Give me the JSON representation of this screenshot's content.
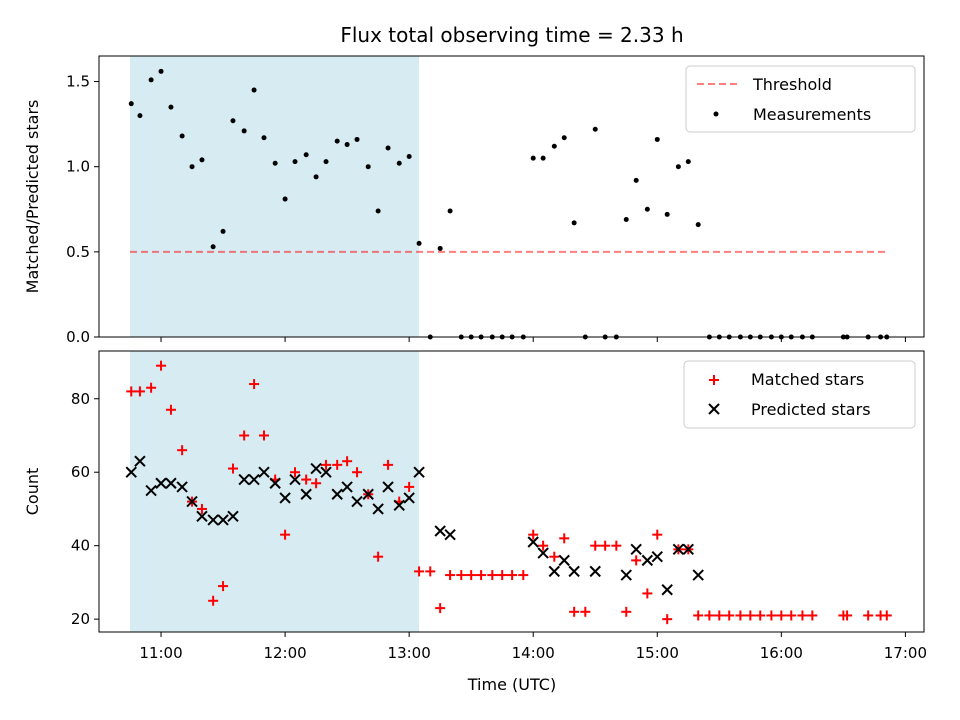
{
  "chart_data": {
    "title": "Flux total observing time = 2.33 h",
    "xlabel": "Time (UTC)",
    "x_unit": "hours UTC",
    "xlim": [
      10.5,
      17.15
    ],
    "x_ticks": [
      11,
      12,
      13,
      14,
      15,
      16,
      17
    ],
    "x_tick_labels": [
      "11:00",
      "12:00",
      "13:00",
      "14:00",
      "15:00",
      "16:00",
      "17:00"
    ],
    "shaded_interval": [
      10.75,
      13.08
    ],
    "colors": {
      "shade": "#add8e6",
      "threshold": "#ff0000",
      "matched": "#ff0000",
      "predicted": "#000000",
      "measurement": "#000000"
    },
    "panels": [
      {
        "type": "scatter",
        "ylabel": "Matched/Predicted stars",
        "ylim": [
          0,
          1.65
        ],
        "y_ticks": [
          0.0,
          0.5,
          1.0,
          1.5
        ],
        "y_tick_labels": [
          "0.0",
          "0.5",
          "1.0",
          "1.5"
        ],
        "threshold": {
          "name": "Threshold",
          "value": 0.5,
          "x_range": [
            10.75,
            16.85
          ]
        },
        "series": [
          {
            "name": "Measurements",
            "marker": "dot",
            "points": [
              [
                10.76,
                1.37
              ],
              [
                10.83,
                1.3
              ],
              [
                10.92,
                1.51
              ],
              [
                11.0,
                1.56
              ],
              [
                11.08,
                1.35
              ],
              [
                11.17,
                1.18
              ],
              [
                11.25,
                1.0
              ],
              [
                11.33,
                1.04
              ],
              [
                11.42,
                0.53
              ],
              [
                11.5,
                0.62
              ],
              [
                11.58,
                1.27
              ],
              [
                11.67,
                1.21
              ],
              [
                11.75,
                1.45
              ],
              [
                11.83,
                1.17
              ],
              [
                11.92,
                1.02
              ],
              [
                12.0,
                0.81
              ],
              [
                12.08,
                1.03
              ],
              [
                12.17,
                1.07
              ],
              [
                12.25,
                0.94
              ],
              [
                12.33,
                1.03
              ],
              [
                12.42,
                1.15
              ],
              [
                12.5,
                1.13
              ],
              [
                12.58,
                1.16
              ],
              [
                12.67,
                1.0
              ],
              [
                12.75,
                0.74
              ],
              [
                12.83,
                1.11
              ],
              [
                12.92,
                1.02
              ],
              [
                13.0,
                1.06
              ],
              [
                13.08,
                0.55
              ],
              [
                13.17,
                0.0
              ],
              [
                13.25,
                0.52
              ],
              [
                13.33,
                0.74
              ],
              [
                13.42,
                0.0
              ],
              [
                13.5,
                0.0
              ],
              [
                13.58,
                0.0
              ],
              [
                13.67,
                0.0
              ],
              [
                13.75,
                0.0
              ],
              [
                13.83,
                0.0
              ],
              [
                13.92,
                0.0
              ],
              [
                14.0,
                1.05
              ],
              [
                14.08,
                1.05
              ],
              [
                14.17,
                1.12
              ],
              [
                14.25,
                1.17
              ],
              [
                14.33,
                0.67
              ],
              [
                14.42,
                0.0
              ],
              [
                14.5,
                1.22
              ],
              [
                14.58,
                0.0
              ],
              [
                14.67,
                0.0
              ],
              [
                14.75,
                0.69
              ],
              [
                14.83,
                0.92
              ],
              [
                14.92,
                0.75
              ],
              [
                15.0,
                1.16
              ],
              [
                15.08,
                0.72
              ],
              [
                15.17,
                1.0
              ],
              [
                15.25,
                1.03
              ],
              [
                15.33,
                0.66
              ],
              [
                15.42,
                0.0
              ],
              [
                15.5,
                0.0
              ],
              [
                15.58,
                0.0
              ],
              [
                15.67,
                0.0
              ],
              [
                15.75,
                0.0
              ],
              [
                15.83,
                0.0
              ],
              [
                15.92,
                0.0
              ],
              [
                16.0,
                0.0
              ],
              [
                16.08,
                0.0
              ],
              [
                16.17,
                0.0
              ],
              [
                16.25,
                0.0
              ],
              [
                16.5,
                0.0
              ],
              [
                16.53,
                0.0
              ],
              [
                16.7,
                0.0
              ],
              [
                16.8,
                0.0
              ],
              [
                16.85,
                0.0
              ]
            ]
          }
        ],
        "legend": {
          "position": "top-right",
          "entries": [
            "Threshold",
            "Measurements"
          ]
        }
      },
      {
        "type": "scatter",
        "ylabel": "Count",
        "ylim": [
          16.5,
          93
        ],
        "y_ticks": [
          20,
          40,
          60,
          80
        ],
        "y_tick_labels": [
          "20",
          "40",
          "60",
          "80"
        ],
        "series": [
          {
            "name": "Matched stars",
            "marker": "plus",
            "points": [
              [
                10.76,
                82
              ],
              [
                10.83,
                82
              ],
              [
                10.92,
                83
              ],
              [
                11.0,
                89
              ],
              [
                11.08,
                77
              ],
              [
                11.17,
                66
              ],
              [
                11.25,
                52
              ],
              [
                11.33,
                50
              ],
              [
                11.42,
                25
              ],
              [
                11.5,
                29
              ],
              [
                11.58,
                61
              ],
              [
                11.67,
                70
              ],
              [
                11.75,
                84
              ],
              [
                11.83,
                70
              ],
              [
                11.92,
                58
              ],
              [
                12.0,
                43
              ],
              [
                12.08,
                60
              ],
              [
                12.17,
                58
              ],
              [
                12.25,
                57
              ],
              [
                12.33,
                62
              ],
              [
                12.42,
                62
              ],
              [
                12.5,
                63
              ],
              [
                12.58,
                60
              ],
              [
                12.67,
                54
              ],
              [
                12.75,
                37
              ],
              [
                12.83,
                62
              ],
              [
                12.92,
                52
              ],
              [
                13.0,
                56
              ],
              [
                13.08,
                33
              ],
              [
                13.17,
                33
              ],
              [
                13.25,
                23
              ],
              [
                13.33,
                32
              ],
              [
                13.42,
                32
              ],
              [
                13.5,
                32
              ],
              [
                13.58,
                32
              ],
              [
                13.67,
                32
              ],
              [
                13.75,
                32
              ],
              [
                13.83,
                32
              ],
              [
                13.92,
                32
              ],
              [
                14.0,
                43
              ],
              [
                14.08,
                40
              ],
              [
                14.17,
                37
              ],
              [
                14.25,
                42
              ],
              [
                14.33,
                22
              ],
              [
                14.42,
                22
              ],
              [
                14.5,
                40
              ],
              [
                14.58,
                40
              ],
              [
                14.67,
                40
              ],
              [
                14.75,
                22
              ],
              [
                14.83,
                36
              ],
              [
                14.92,
                27
              ],
              [
                15.0,
                43
              ],
              [
                15.08,
                20
              ],
              [
                15.17,
                39
              ],
              [
                15.25,
                39
              ],
              [
                15.33,
                21
              ],
              [
                15.42,
                21
              ],
              [
                15.5,
                21
              ],
              [
                15.58,
                21
              ],
              [
                15.67,
                21
              ],
              [
                15.75,
                21
              ],
              [
                15.83,
                21
              ],
              [
                15.92,
                21
              ],
              [
                16.0,
                21
              ],
              [
                16.08,
                21
              ],
              [
                16.17,
                21
              ],
              [
                16.25,
                21
              ],
              [
                16.5,
                21
              ],
              [
                16.53,
                21
              ],
              [
                16.7,
                21
              ],
              [
                16.8,
                21
              ],
              [
                16.85,
                21
              ]
            ]
          },
          {
            "name": "Predicted stars",
            "marker": "cross",
            "points": [
              [
                10.76,
                60
              ],
              [
                10.83,
                63
              ],
              [
                10.92,
                55
              ],
              [
                11.0,
                57
              ],
              [
                11.08,
                57
              ],
              [
                11.17,
                56
              ],
              [
                11.25,
                52
              ],
              [
                11.33,
                48
              ],
              [
                11.42,
                47
              ],
              [
                11.5,
                47
              ],
              [
                11.58,
                48
              ],
              [
                11.67,
                58
              ],
              [
                11.75,
                58
              ],
              [
                11.83,
                60
              ],
              [
                11.92,
                57
              ],
              [
                12.0,
                53
              ],
              [
                12.08,
                58
              ],
              [
                12.17,
                54
              ],
              [
                12.25,
                61
              ],
              [
                12.33,
                60
              ],
              [
                12.42,
                54
              ],
              [
                12.5,
                56
              ],
              [
                12.58,
                52
              ],
              [
                12.67,
                54
              ],
              [
                12.75,
                50
              ],
              [
                12.83,
                56
              ],
              [
                12.92,
                51
              ],
              [
                13.0,
                53
              ],
              [
                13.08,
                60
              ],
              [
                13.25,
                44
              ],
              [
                13.33,
                43
              ],
              [
                14.0,
                41
              ],
              [
                14.08,
                38
              ],
              [
                14.17,
                33
              ],
              [
                14.25,
                36
              ],
              [
                14.33,
                33
              ],
              [
                14.5,
                33
              ],
              [
                14.75,
                32
              ],
              [
                14.83,
                39
              ],
              [
                14.92,
                36
              ],
              [
                15.0,
                37
              ],
              [
                15.08,
                28
              ],
              [
                15.17,
                39
              ],
              [
                15.25,
                39
              ],
              [
                15.33,
                32
              ]
            ]
          }
        ],
        "legend": {
          "position": "top-right",
          "entries": [
            "Matched stars",
            "Predicted stars"
          ]
        }
      }
    ]
  }
}
